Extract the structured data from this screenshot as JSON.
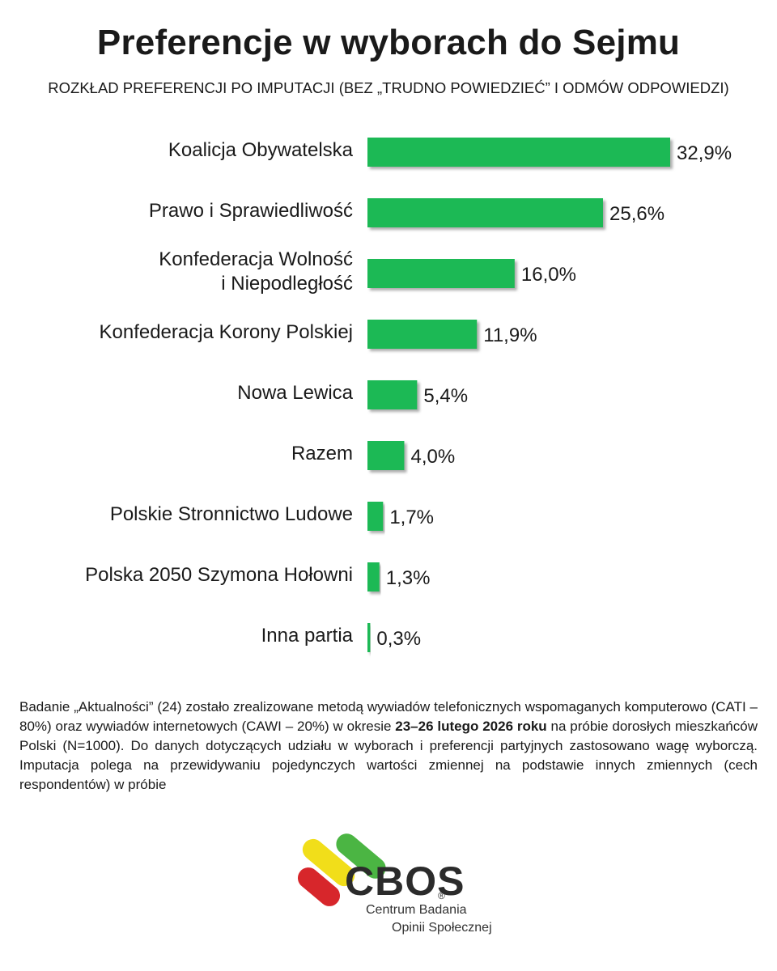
{
  "title": "Preferencje w wyborach do Sejmu",
  "subtitle": "ROZKŁAD PREFERENCJI PO IMPUTACJI (BEZ „TRUDNO POWIEDZIEĆ” I ODMÓW ODPOWIEDZI)",
  "colors": {
    "bar": "#1db954",
    "bar_shadow": "#b5b5b5",
    "text": "#1a1a1a"
  },
  "chart_data": {
    "type": "bar",
    "orientation": "horizontal",
    "categories": [
      [
        "Koalicja Obywatelska"
      ],
      [
        "Prawo i Sprawiedliwość"
      ],
      [
        "Konfederacja Wolność",
        "i Niepodległość"
      ],
      [
        "Konfederacja Korony Polskiej"
      ],
      [
        "Nowa Lewica"
      ],
      [
        "Razem"
      ],
      [
        "Polskie Stronnictwo Ludowe"
      ],
      [
        "Polska 2050 Szymona Hołowni"
      ],
      [
        "Inna partia"
      ]
    ],
    "values": [
      32.9,
      25.6,
      16.0,
      11.9,
      5.4,
      4.0,
      1.7,
      1.3,
      0.3
    ],
    "value_labels": [
      "32,9%",
      "25,6%",
      "16,0%",
      "11,9%",
      "5,4%",
      "4,0%",
      "1,7%",
      "1,3%",
      "0,3%"
    ],
    "unit": "%",
    "xlim": [
      0,
      32.9
    ],
    "grid": false,
    "legend": "none"
  },
  "note": {
    "part1": "Badanie „Aktualności” (24) zostało zrealizowane metodą wywiadów telefonicznych wspomaganych komputerowo (CATI – 80%) oraz wywiadów internetowych (CAWI – 20%) w okresie ",
    "bold": "23–26 lutego 2026 roku",
    "part2": " na próbie dorosłych mieszkańców Polski (N=1000). Do danych dotyczących udziału w wyborach i preferencji partyjnych zastosowano wagę wyborczą. Imputacja polega na przewidywaniu pojedynczych wartości zmiennej na podstawie innych zmiennych (cech respondentów) w próbie"
  },
  "logo": {
    "name": "CBOS",
    "registered": "®",
    "line1": "Centrum Badania",
    "line2": "Opinii Społecznej",
    "icon": "cbos-logo-icon"
  }
}
